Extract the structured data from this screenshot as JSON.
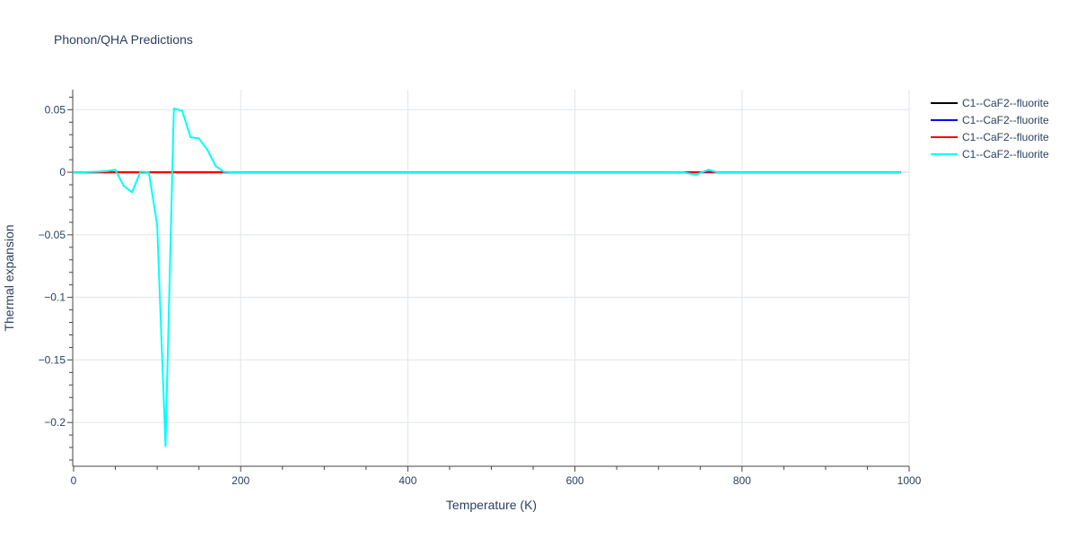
{
  "chart_data": {
    "type": "line",
    "title": "Phonon/QHA Predictions",
    "xlabel": "Temperature (K)",
    "ylabel": "Thermal expansion",
    "xlim": [
      0,
      1000
    ],
    "ylim": [
      -0.235,
      0.066
    ],
    "x_ticks": [
      0,
      200,
      400,
      600,
      800,
      1000
    ],
    "x_tick_labels": [
      "0",
      "200",
      "400",
      "600",
      "800",
      "1000"
    ],
    "y_ticks": [
      0.05,
      0,
      -0.05,
      -0.1,
      -0.15,
      -0.2
    ],
    "y_tick_labels": [
      "0.05",
      "0",
      "−0.05",
      "−0.1",
      "−0.15",
      "−0.2"
    ],
    "grid": true,
    "legend_position": "top-right",
    "series": [
      {
        "name": "C1--CaF2--fluorite",
        "color": "#000000",
        "x": [
          0,
          990
        ],
        "y": [
          0,
          0
        ]
      },
      {
        "name": "C1--CaF2--fluorite",
        "color": "#0000ff",
        "x": [
          0,
          990
        ],
        "y": [
          0,
          0
        ]
      },
      {
        "name": "C1--CaF2--fluorite",
        "color": "#ff0000",
        "x": [
          0,
          180,
          740,
          745,
          760,
          770,
          990
        ],
        "y": [
          0,
          0,
          0,
          0,
          0.0003,
          0,
          0
        ]
      },
      {
        "name": "C1--CaF2--fluorite",
        "color": "#00ffff",
        "x": [
          0,
          10,
          20,
          30,
          40,
          50,
          60,
          70,
          80,
          90,
          100,
          110,
          120,
          130,
          140,
          150,
          160,
          170,
          180,
          190,
          300,
          500,
          700,
          730,
          740,
          745,
          750,
          760,
          765,
          770,
          780,
          800,
          900,
          990
        ],
        "y": [
          0,
          0,
          0.0002,
          0.0005,
          0.001,
          0.002,
          -0.011,
          -0.016,
          0.0005,
          0,
          -0.042,
          -0.219,
          0.051,
          0.049,
          0.028,
          0.027,
          0.018,
          0.005,
          0.0003,
          0,
          0,
          0,
          0,
          0,
          -0.0015,
          -0.002,
          -0.0005,
          0.002,
          0.001,
          0,
          0,
          0,
          0,
          0
        ]
      }
    ]
  }
}
